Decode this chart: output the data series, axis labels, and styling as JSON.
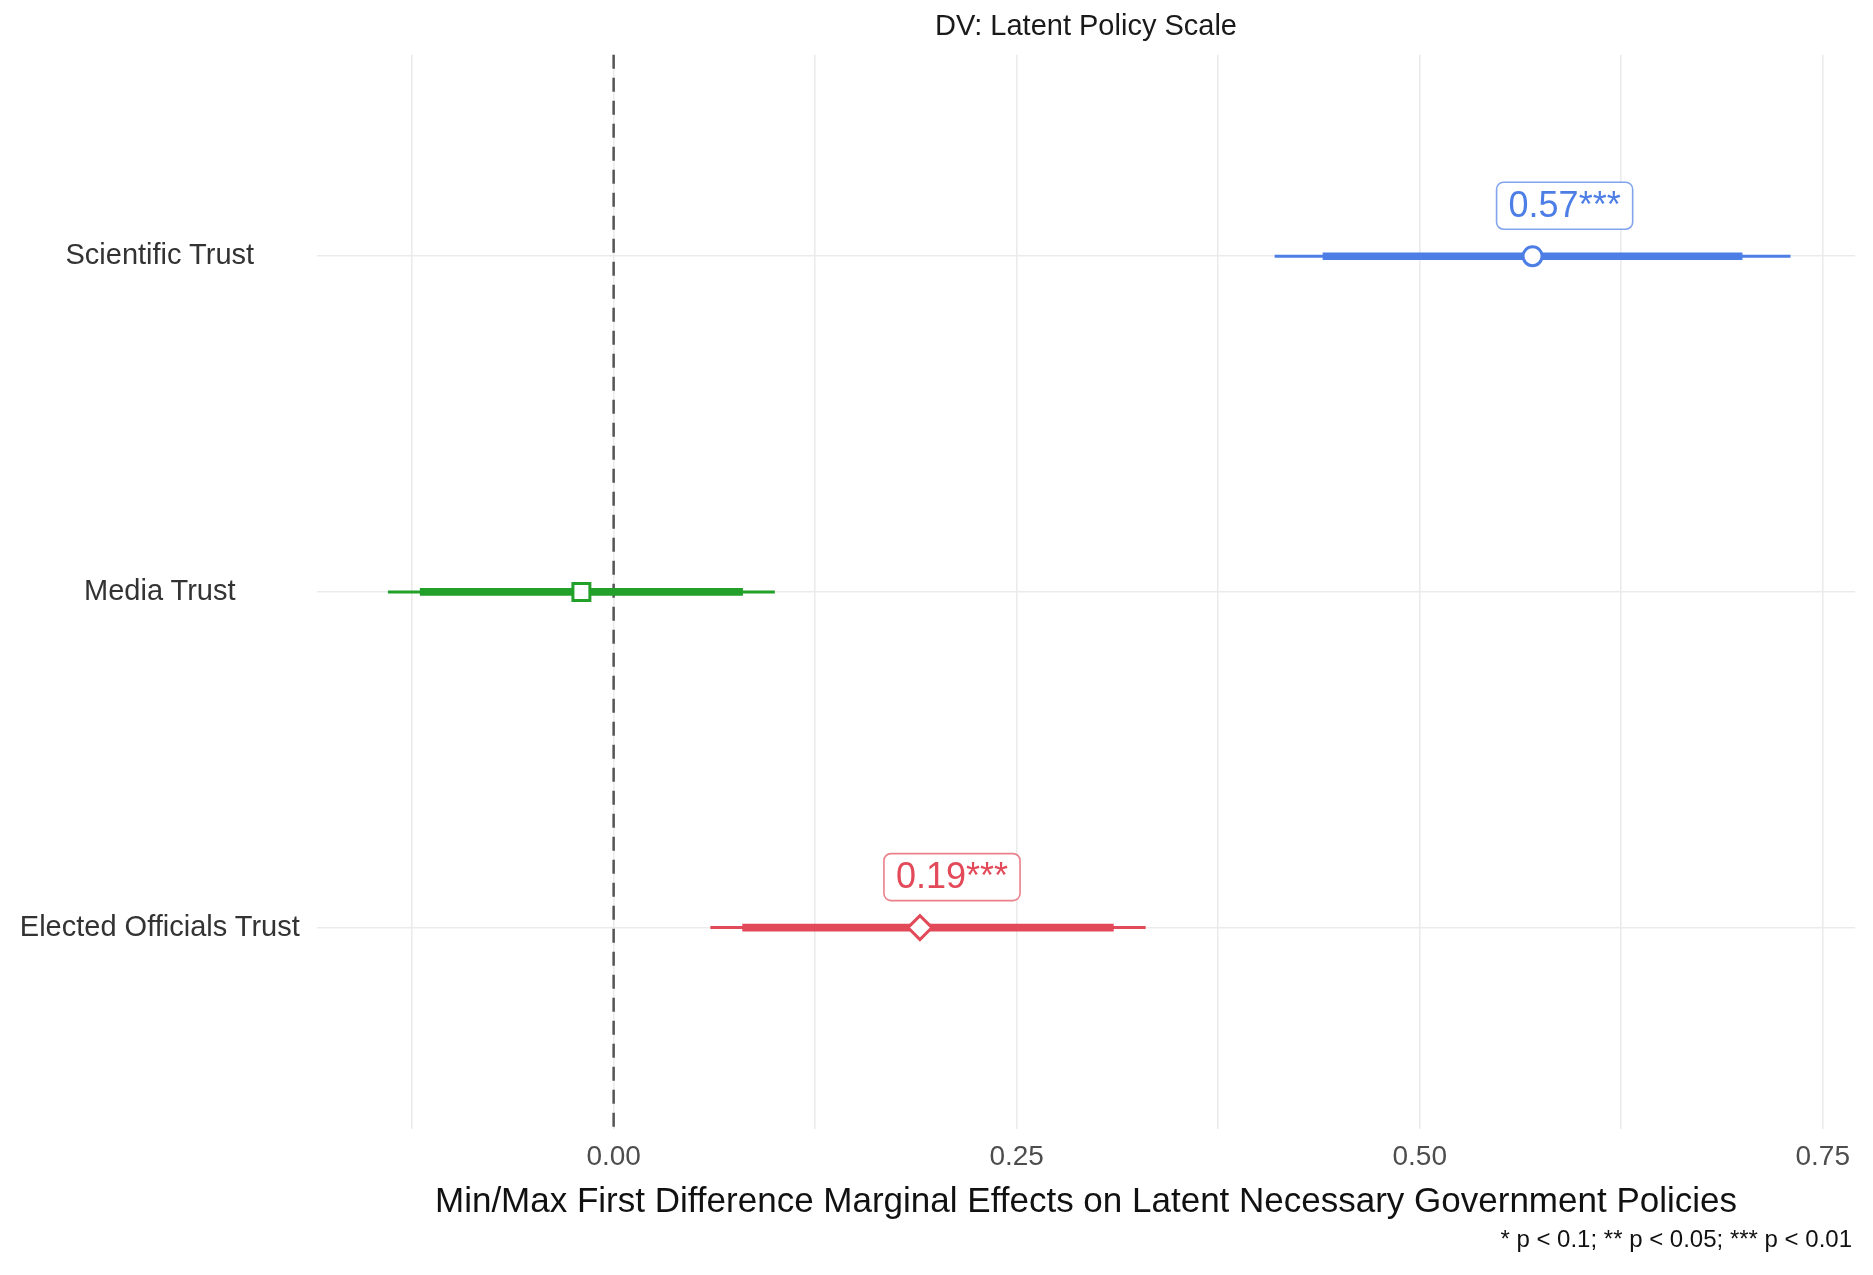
{
  "chart_data": {
    "type": "scatter",
    "orientation": "horizontal",
    "title": "DV: Latent Policy Scale",
    "xlabel": "Min/Max First Difference Marginal Effects on Latent Necessary Government Policies",
    "categories": [
      "Scientific Trust",
      "Media Trust",
      "Elected Officials Trust"
    ],
    "xlim": [
      -0.184,
      0.77
    ],
    "xticks": [
      {
        "value": -0.125,
        "label": null
      },
      {
        "value": 0,
        "label": "0.00"
      },
      {
        "value": 0.125,
        "label": null
      },
      {
        "value": 0.25,
        "label": "0.25"
      },
      {
        "value": 0.375,
        "label": null
      },
      {
        "value": 0.5,
        "label": "0.50"
      },
      {
        "value": 0.625,
        "label": null
      },
      {
        "value": 0.75,
        "label": "0.75"
      }
    ],
    "grid": true,
    "ref_lines": [
      {
        "axis": "x",
        "value": 0,
        "color": "#555555",
        "line_style": "dashed"
      }
    ],
    "annotations": [
      "* p < 0.1; ** p < 0.05; *** p < 0.01"
    ],
    "series": [
      {
        "type": "bar",
        "base": [
          0.44,
          -0.12,
          0.08
        ],
        "values": [
          0.26,
          0.2,
          0.23
        ],
        "colors": [
          "#4d7ee6",
          "#22a02a",
          "#e24a5a"
        ]
      },
      {
        "color": "#4d7ee6",
        "marker": "circle",
        "values": [
          0.57,
          null,
          null
        ],
        "errors": [
          [
            0.41,
            0.73
          ],
          null,
          null
        ],
        "value_labels": [
          "0.57***",
          null,
          null
        ]
      },
      {
        "color": "#22a02a",
        "marker": "square",
        "values": [
          null,
          -0.02,
          null
        ],
        "errors": [
          null,
          [
            -0.14,
            0.1
          ],
          null
        ]
      },
      {
        "color": "#e24a5a",
        "marker": "diamond",
        "values": [
          null,
          null,
          0.19
        ],
        "errors": [
          null,
          null,
          [
            0.06,
            0.33
          ]
        ],
        "value_labels": [
          null,
          null,
          "0.19***"
        ]
      }
    ]
  }
}
